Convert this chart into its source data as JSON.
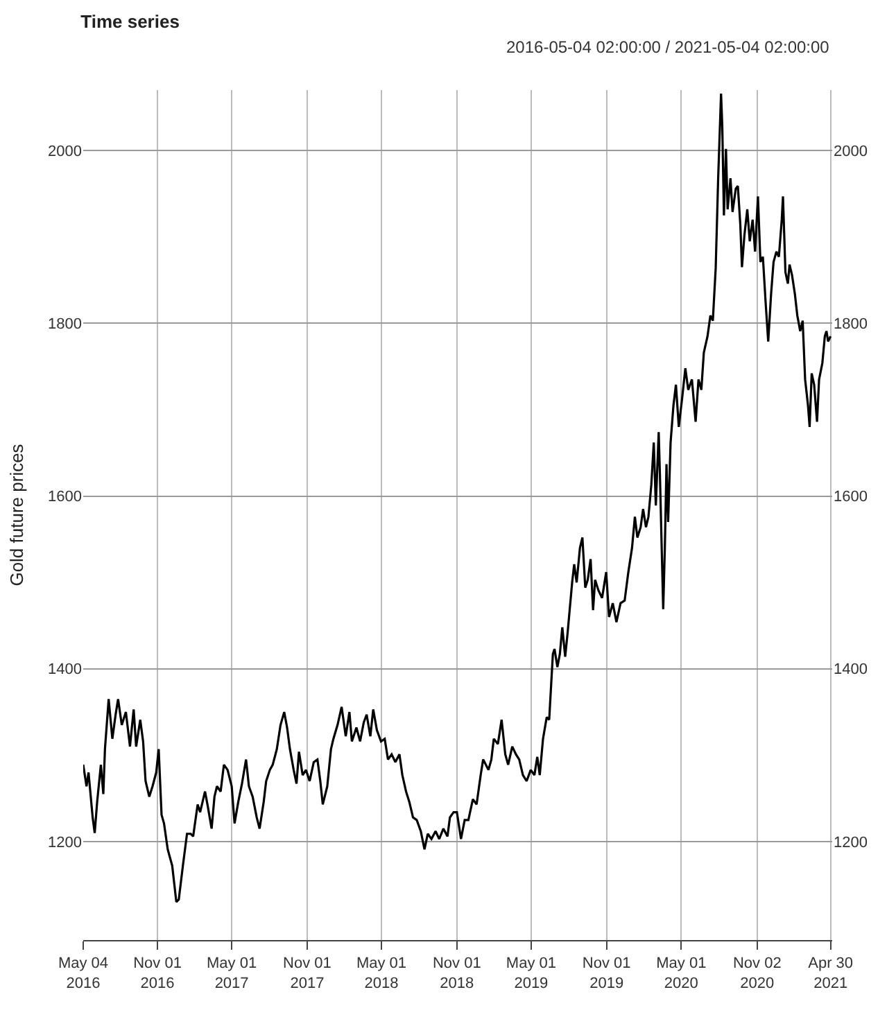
{
  "chart_data": {
    "type": "line",
    "title": "Time series",
    "subtitle": "2016-05-04 02:00:00 / 2021-05-04 02:00:00",
    "ylabel": "Gold future prices",
    "x": [
      "2016-05-04",
      "2016-05-12",
      "2016-05-17",
      "2016-05-27",
      "2016-06-01",
      "2016-06-07",
      "2016-06-16",
      "2016-06-22",
      "2016-06-26",
      "2016-07-05",
      "2016-07-14",
      "2016-07-22",
      "2016-07-28",
      "2016-08-06",
      "2016-08-16",
      "2016-08-26",
      "2016-09-04",
      "2016-09-10",
      "2016-09-20",
      "2016-09-27",
      "2016-10-03",
      "2016-10-12",
      "2016-10-20",
      "2016-10-29",
      "2016-11-04",
      "2016-11-11",
      "2016-11-17",
      "2016-11-26",
      "2016-12-07",
      "2016-12-17",
      "2016-12-23",
      "2017-01-02",
      "2017-01-12",
      "2017-01-21",
      "2017-01-27",
      "2017-02-07",
      "2017-02-13",
      "2017-02-25",
      "2017-03-04",
      "2017-03-13",
      "2017-03-20",
      "2017-03-26",
      "2017-04-04",
      "2017-04-12",
      "2017-04-21",
      "2017-05-01",
      "2017-05-08",
      "2017-05-17",
      "2017-05-26",
      "2017-06-05",
      "2017-06-12",
      "2017-06-21",
      "2017-07-01",
      "2017-07-08",
      "2017-07-18",
      "2017-07-24",
      "2017-08-02",
      "2017-08-09",
      "2017-08-19",
      "2017-08-28",
      "2017-09-06",
      "2017-09-13",
      "2017-09-20",
      "2017-09-29",
      "2017-10-06",
      "2017-10-12",
      "2017-10-21",
      "2017-10-29",
      "2017-11-07",
      "2017-11-17",
      "2017-11-26",
      "2017-12-03",
      "2017-12-09",
      "2017-12-20",
      "2017-12-29",
      "2018-01-04",
      "2018-01-14",
      "2018-01-24",
      "2018-02-03",
      "2018-02-12",
      "2018-02-18",
      "2018-03-01",
      "2018-03-10",
      "2018-03-19",
      "2018-03-26",
      "2018-04-04",
      "2018-04-11",
      "2018-04-20",
      "2018-04-30",
      "2018-05-09",
      "2018-05-17",
      "2018-05-26",
      "2018-06-04",
      "2018-06-14",
      "2018-06-21",
      "2018-06-30",
      "2018-07-08",
      "2018-07-17",
      "2018-07-26",
      "2018-08-05",
      "2018-08-14",
      "2018-08-22",
      "2018-08-31",
      "2018-09-10",
      "2018-09-19",
      "2018-09-29",
      "2018-10-09",
      "2018-10-15",
      "2018-10-24",
      "2018-11-01",
      "2018-11-11",
      "2018-11-20",
      "2018-11-29",
      "2018-12-10",
      "2018-12-19",
      "2018-12-29",
      "2019-01-04",
      "2019-01-17",
      "2019-01-24",
      "2019-01-30",
      "2019-02-09",
      "2019-02-18",
      "2019-02-27",
      "2019-03-06",
      "2019-03-16",
      "2019-03-25",
      "2019-04-02",
      "2019-04-11",
      "2019-04-20",
      "2019-04-30",
      "2019-05-09",
      "2019-05-16",
      "2019-05-22",
      "2019-05-30",
      "2019-06-08",
      "2019-06-14",
      "2019-06-23",
      "2019-06-27",
      "2019-07-04",
      "2019-07-10",
      "2019-07-16",
      "2019-07-23",
      "2019-07-29",
      "2019-08-09",
      "2019-08-14",
      "2019-08-20",
      "2019-08-28",
      "2019-09-03",
      "2019-09-10",
      "2019-09-16",
      "2019-09-23",
      "2019-09-29",
      "2019-10-04",
      "2019-10-12",
      "2019-10-21",
      "2019-10-31",
      "2019-11-07",
      "2019-11-16",
      "2019-11-25",
      "2019-12-05",
      "2019-12-15",
      "2019-12-24",
      "2020-01-02",
      "2020-01-09",
      "2020-01-15",
      "2020-01-23",
      "2020-01-29",
      "2020-02-05",
      "2020-02-11",
      "2020-02-18",
      "2020-02-24",
      "2020-02-29",
      "2020-03-07",
      "2020-03-10",
      "2020-03-14",
      "2020-03-18",
      "2020-03-22",
      "2020-03-26",
      "2020-03-30",
      "2020-04-05",
      "2020-04-12",
      "2020-04-18",
      "2020-04-25",
      "2020-05-04",
      "2020-05-11",
      "2020-05-18",
      "2020-05-27",
      "2020-06-05",
      "2020-06-12",
      "2020-06-19",
      "2020-06-25",
      "2020-07-04",
      "2020-07-11",
      "2020-07-17",
      "2020-07-24",
      "2020-07-30",
      "2020-08-06",
      "2020-08-09",
      "2020-08-13",
      "2020-08-18",
      "2020-08-22",
      "2020-08-29",
      "2020-09-03",
      "2020-09-11",
      "2020-09-16",
      "2020-09-22",
      "2020-09-26",
      "2020-10-02",
      "2020-10-09",
      "2020-10-15",
      "2020-10-22",
      "2020-10-28",
      "2020-11-04",
      "2020-11-10",
      "2020-11-16",
      "2020-11-23",
      "2020-11-29",
      "2020-12-06",
      "2020-12-12",
      "2020-12-19",
      "2020-12-25",
      "2021-01-01",
      "2021-01-04",
      "2021-01-10",
      "2021-01-16",
      "2021-01-20",
      "2021-01-26",
      "2021-02-02",
      "2021-02-08",
      "2021-02-15",
      "2021-02-21",
      "2021-02-27",
      "2021-03-06",
      "2021-03-10",
      "2021-03-15",
      "2021-03-21",
      "2021-03-28",
      "2021-04-02",
      "2021-04-10",
      "2021-04-16",
      "2021-04-20",
      "2021-04-24",
      "2021-04-30"
    ],
    "series": [
      {
        "color": "#000000",
        "values": [
          1289,
          1264,
          1280,
          1228,
          1210,
          1246,
          1289,
          1255,
          1307,
          1365,
          1319,
          1347,
          1365,
          1335,
          1350,
          1310,
          1353,
          1310,
          1341,
          1316,
          1270,
          1252,
          1264,
          1280,
          1307,
          1231,
          1221,
          1191,
          1172,
          1130,
          1133,
          1172,
          1209,
          1209,
          1206,
          1243,
          1234,
          1258,
          1240,
          1215,
          1252,
          1264,
          1258,
          1289,
          1283,
          1264,
          1221,
          1246,
          1267,
          1295,
          1264,
          1252,
          1228,
          1215,
          1246,
          1270,
          1283,
          1289,
          1307,
          1335,
          1350,
          1332,
          1307,
          1283,
          1267,
          1304,
          1277,
          1283,
          1270,
          1292,
          1295,
          1270,
          1243,
          1264,
          1307,
          1319,
          1335,
          1356,
          1322,
          1350,
          1316,
          1332,
          1316,
          1338,
          1347,
          1322,
          1353,
          1329,
          1316,
          1319,
          1295,
          1301,
          1292,
          1301,
          1277,
          1258,
          1246,
          1228,
          1225,
          1212,
          1191,
          1209,
          1203,
          1212,
          1203,
          1215,
          1206,
          1228,
          1234,
          1234,
          1203,
          1225,
          1225,
          1249,
          1243,
          1277,
          1295,
          1283,
          1295,
          1319,
          1313,
          1341,
          1301,
          1289,
          1310,
          1301,
          1295,
          1277,
          1270,
          1283,
          1277,
          1298,
          1277,
          1319,
          1344,
          1341,
          1417,
          1423,
          1402,
          1417,
          1448,
          1414,
          1442,
          1500,
          1521,
          1500,
          1540,
          1552,
          1494,
          1503,
          1527,
          1468,
          1503,
          1491,
          1482,
          1512,
          1460,
          1476,
          1454,
          1476,
          1479,
          1512,
          1540,
          1576,
          1552,
          1564,
          1585,
          1564,
          1576,
          1613,
          1662,
          1589,
          1674,
          1625,
          1546,
          1469,
          1540,
          1637,
          1570,
          1662,
          1705,
          1729,
          1680,
          1717,
          1748,
          1723,
          1735,
          1686,
          1735,
          1723,
          1766,
          1785,
          1809,
          1803,
          1864,
          1968,
          2066,
          2029,
          1925,
          2002,
          1932,
          1968,
          1929,
          1956,
          1959,
          1914,
          1865,
          1902,
          1932,
          1895,
          1920,
          1883,
          1947,
          1871,
          1877,
          1822,
          1779,
          1834,
          1871,
          1883,
          1877,
          1920,
          1947,
          1859,
          1846,
          1868,
          1856,
          1834,
          1809,
          1791,
          1803,
          1735,
          1705,
          1680,
          1742,
          1729,
          1686,
          1735,
          1754,
          1785,
          1791,
          1779,
          1785
        ]
      }
    ],
    "xlim": [
      "2016-05-04",
      "2021-05-04"
    ],
    "xticks": [
      {
        "value": "2016-05-04",
        "label": "May 04\n2016"
      },
      {
        "value": "2016-11-01",
        "label": "Nov 01\n2016"
      },
      {
        "value": "2017-05-01",
        "label": "May 01\n2017"
      },
      {
        "value": "2017-11-01",
        "label": "Nov 01\n2017"
      },
      {
        "value": "2018-05-01",
        "label": "May 01\n2018"
      },
      {
        "value": "2018-11-01",
        "label": "Nov 01\n2018"
      },
      {
        "value": "2019-05-01",
        "label": "May 01\n2019"
      },
      {
        "value": "2019-11-01",
        "label": "Nov 01\n2019"
      },
      {
        "value": "2020-05-01",
        "label": "May 01\n2020"
      },
      {
        "value": "2020-11-02",
        "label": "Nov 02\n2020"
      },
      {
        "value": "2021-04-30",
        "label": "Apr 30\n2021"
      }
    ],
    "ylim": [
      1086,
      2070
    ],
    "yticks": [
      1200,
      1400,
      1600,
      1800,
      2000
    ],
    "y2lim": [
      1086,
      2070
    ],
    "y2ticks": [
      1200,
      1400,
      1600,
      1800,
      2000
    ],
    "grid": true,
    "marker": "none",
    "line_style": "solid"
  }
}
